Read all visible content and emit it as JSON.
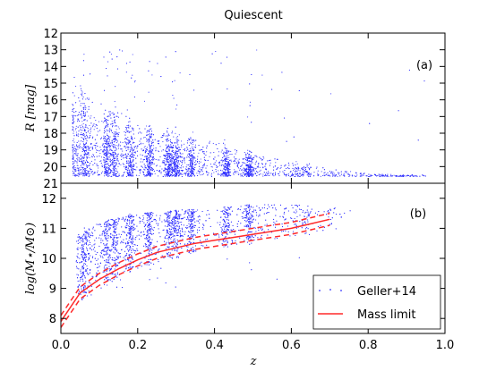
{
  "chart_data": {
    "type": "scatter",
    "title": "Quiescent",
    "point_color": "#3030ff",
    "limit_color": "#ff2a2a",
    "panels": [
      {
        "tag": "(a)",
        "ylabel": "R [mag]",
        "ylim": [
          21,
          12
        ],
        "yticks": [
          "12",
          "13",
          "14",
          "15",
          "16",
          "17",
          "18",
          "19",
          "20",
          "21"
        ],
        "density_peaks_z": [
          0.06,
          0.12,
          0.14,
          0.18,
          0.23,
          0.28,
          0.3,
          0.34,
          0.43,
          0.49
        ],
        "cloud": {
          "bright_edge": [
            [
              0.02,
              14.5
            ],
            [
              0.1,
              16.0
            ],
            [
              0.2,
              17.2
            ],
            [
              0.3,
              17.8
            ],
            [
              0.4,
              18.4
            ],
            [
              0.5,
              19.0
            ],
            [
              0.6,
              19.6
            ],
            [
              0.7,
              20.1
            ],
            [
              0.8,
              20.4
            ],
            [
              0.95,
              20.5
            ]
          ],
          "faint_limit": 20.6
        }
      },
      {
        "tag": "(b)",
        "ylabel": "log(M⋆/M⊙)",
        "ylim": [
          7.5,
          12.5
        ],
        "yticks": [
          "8",
          "9",
          "10",
          "11",
          "12"
        ],
        "cloud": {
          "upper_edge": [
            [
              0.05,
              10.8
            ],
            [
              0.1,
              11.2
            ],
            [
              0.2,
              11.5
            ],
            [
              0.3,
              11.6
            ],
            [
              0.4,
              11.7
            ],
            [
              0.5,
              11.8
            ],
            [
              0.6,
              11.8
            ],
            [
              0.7,
              11.7
            ]
          ]
        },
        "mass_limit": {
          "z": [
            0.0,
            0.05,
            0.1,
            0.15,
            0.2,
            0.25,
            0.3,
            0.35,
            0.4,
            0.45,
            0.5,
            0.55,
            0.6,
            0.65,
            0.7
          ],
          "median": [
            7.9,
            8.85,
            9.3,
            9.65,
            9.95,
            10.2,
            10.35,
            10.5,
            10.6,
            10.7,
            10.8,
            10.9,
            11.0,
            11.15,
            11.3
          ],
          "upper": [
            8.1,
            9.05,
            9.5,
            9.85,
            10.15,
            10.4,
            10.55,
            10.7,
            10.8,
            10.9,
            11.0,
            11.1,
            11.2,
            11.35,
            11.5
          ],
          "lower": [
            7.7,
            8.65,
            9.1,
            9.45,
            9.75,
            10.0,
            10.15,
            10.3,
            10.4,
            10.5,
            10.6,
            10.7,
            10.8,
            10.95,
            11.1
          ]
        },
        "legend": {
          "position": "lower-right",
          "entries": [
            {
              "label": "Geller+14",
              "kind": "points"
            },
            {
              "label": "Mass limit",
              "kind": "line"
            }
          ]
        }
      }
    ],
    "xlabel": "z",
    "xlim": [
      0.0,
      1.0
    ],
    "xticks": [
      "0.0",
      "0.2",
      "0.4",
      "0.6",
      "0.8",
      "1.0"
    ]
  }
}
